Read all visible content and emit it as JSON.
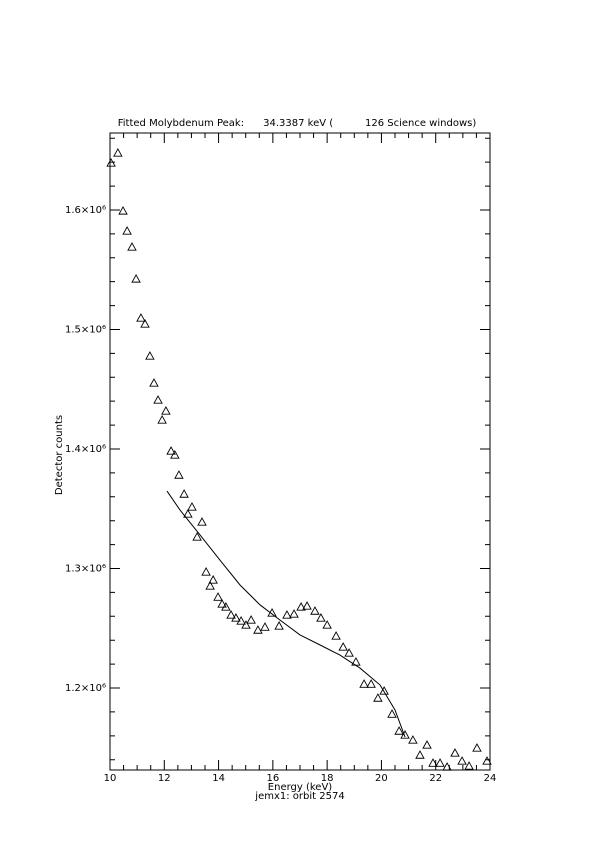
{
  "chart_data": {
    "type": "scatter",
    "title": "Fitted Molybdenum Peak:      34.3387 keV (          126 Science windows)",
    "x_label": "Energy (keV)",
    "y_label": "Detector counts",
    "subtitle": "jemx1: orbit 2574",
    "xlim": [
      10,
      24
    ],
    "xticks": [
      10,
      12,
      14,
      16,
      18,
      20,
      22,
      24
    ],
    "ylim": [
      1131400,
      1664400
    ],
    "yticks": [
      {
        "value": 1200000,
        "label": "1.2×10⁶"
      },
      {
        "value": 1300000,
        "label": "1.3×10⁶"
      },
      {
        "value": 1400000,
        "label": "1.4×10⁶"
      },
      {
        "value": 1500000,
        "label": "1.5×10⁶"
      },
      {
        "value": 1600000,
        "label": "1.6×10⁶"
      }
    ],
    "color": "#000000",
    "points": {
      "x": [
        10.04,
        10.29,
        10.48,
        10.63,
        10.81,
        10.96,
        11.14,
        11.29,
        11.47,
        11.62,
        11.77,
        11.92,
        12.06,
        12.25,
        12.39,
        12.54,
        12.73,
        12.87,
        13.02,
        13.21,
        13.39,
        13.54,
        13.69,
        13.8,
        13.98,
        14.13,
        14.27,
        14.46,
        14.64,
        14.83,
        15.01,
        15.2,
        15.45,
        15.71,
        15.97,
        16.23,
        16.52,
        16.78,
        17.04,
        17.26,
        17.55,
        17.77,
        18.0,
        18.33,
        18.59,
        18.81,
        19.06,
        19.36,
        19.62,
        19.87,
        20.1,
        20.39,
        20.65,
        20.87,
        21.16,
        21.42,
        21.68,
        21.9,
        22.16,
        22.42,
        22.71,
        22.97,
        23.23,
        23.52,
        23.89
      ],
      "values": [
        1639300,
        1647700,
        1599200,
        1582400,
        1569000,
        1542300,
        1509600,
        1504600,
        1477800,
        1455200,
        1441000,
        1424300,
        1431800,
        1398300,
        1395000,
        1378200,
        1362300,
        1345600,
        1351500,
        1326400,
        1338900,
        1297100,
        1285400,
        1290400,
        1276100,
        1270300,
        1267800,
        1261100,
        1258600,
        1256100,
        1252700,
        1256900,
        1248500,
        1251000,
        1262800,
        1251900,
        1261100,
        1261900,
        1267800,
        1268600,
        1264400,
        1258600,
        1252700,
        1243500,
        1234300,
        1229300,
        1221800,
        1203300,
        1203300,
        1191600,
        1197500,
        1178200,
        1164000,
        1160700,
        1156500,
        1143900,
        1152300,
        1137200,
        1137200,
        1133900,
        1145600,
        1138900,
        1134700,
        1149800,
        1138900
      ]
    },
    "fit": {
      "x": [
        12.1,
        12.58,
        13.32,
        14.05,
        14.79,
        15.53,
        16.26,
        17.0,
        17.74,
        18.47,
        19.21,
        19.95,
        20.5,
        20.87
      ],
      "values": [
        1364800,
        1348900,
        1328000,
        1307100,
        1286200,
        1269500,
        1256900,
        1244400,
        1236000,
        1227600,
        1216700,
        1202500,
        1181600,
        1159000
      ]
    }
  }
}
